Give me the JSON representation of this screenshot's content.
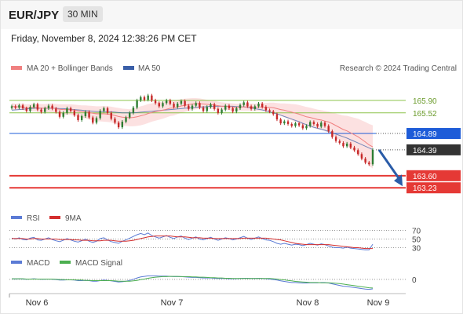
{
  "header": {
    "symbol": "EUR/JPY",
    "interval": "30 MIN",
    "timestamp": "Friday, November 8, 2024 12:38:26 PM CET",
    "attribution": "Research © 2024 Trading Central"
  },
  "colors": {
    "candle_up": "#2e7d32",
    "candle_down": "#c62828",
    "bollinger_fill": "#fbd7d7",
    "ma20": "#f08080",
    "ma50": "#3a5fa8",
    "resistance": "#8bc34a",
    "support": "#e53935",
    "current": "#333333",
    "pivot": "#1e5cd8",
    "rsi": "#5b7bd5",
    "rsi_ma": "#d32f2f",
    "macd": "#5b7bd5",
    "macd_signal": "#4caf50",
    "arrow": "#2a5ca8"
  },
  "chart_data": [
    {
      "type": "candlestick",
      "legend": [
        "MA 20 + Bollinger Bands",
        "MA 50"
      ],
      "legend_placement": "top-left",
      "x_ticks": [
        "Nov 6",
        "Nov 7",
        "Nov 8",
        "Nov 9"
      ],
      "ylim": [
        162.9,
        166.45
      ],
      "levels": [
        {
          "value": 165.9,
          "label": "165.90",
          "kind": "resistance"
        },
        {
          "value": 165.52,
          "label": "165.52",
          "kind": "resistance"
        },
        {
          "value": 164.89,
          "label": "164.89",
          "kind": "pivot"
        },
        {
          "value": 164.39,
          "label": "164.39",
          "kind": "current"
        },
        {
          "value": 163.6,
          "label": "163.60",
          "kind": "support"
        },
        {
          "value": 163.23,
          "label": "163.23",
          "kind": "support"
        }
      ],
      "close": [
        165.72,
        165.68,
        165.75,
        165.66,
        165.58,
        165.7,
        165.78,
        165.62,
        165.55,
        165.66,
        165.74,
        165.65,
        165.55,
        165.4,
        165.52,
        165.66,
        165.58,
        165.45,
        165.3,
        165.42,
        165.55,
        165.38,
        165.22,
        165.36,
        165.58,
        165.66,
        165.52,
        165.34,
        165.22,
        165.08,
        165.25,
        165.38,
        165.52,
        165.68,
        165.9,
        166.0,
        165.92,
        166.05,
        165.9,
        165.82,
        165.72,
        165.82,
        165.9,
        165.8,
        165.7,
        165.8,
        165.88,
        165.74,
        165.64,
        165.74,
        165.82,
        165.68,
        165.58,
        165.7,
        165.78,
        165.64,
        165.52,
        165.62,
        165.74,
        165.66,
        165.56,
        165.66,
        165.76,
        165.84,
        165.72,
        165.64,
        165.72,
        165.8,
        165.7,
        165.6,
        165.56,
        165.48,
        165.32,
        165.2,
        165.26,
        165.18,
        165.12,
        165.2,
        165.14,
        165.05,
        165.12,
        165.24,
        165.18,
        165.1,
        165.22,
        165.12,
        164.96,
        164.78,
        164.66,
        164.6,
        164.5,
        164.58,
        164.46,
        164.38,
        164.26,
        164.12,
        164.0,
        163.95,
        164.39
      ],
      "ma20": [
        165.72,
        165.7,
        165.71,
        165.7,
        165.67,
        165.68,
        165.69,
        165.68,
        165.66,
        165.66,
        165.67,
        165.67,
        165.65,
        165.63,
        165.62,
        165.62,
        165.62,
        165.6,
        165.58,
        165.56,
        165.55,
        165.53,
        165.51,
        165.49,
        165.49,
        165.49,
        165.48,
        165.47,
        165.44,
        165.41,
        165.39,
        165.38,
        165.37,
        165.38,
        165.4,
        165.43,
        165.46,
        165.5,
        165.53,
        165.56,
        165.58,
        165.6,
        165.63,
        165.66,
        165.67,
        165.7,
        165.73,
        165.75,
        165.77,
        165.79,
        165.8,
        165.8,
        165.79,
        165.78,
        165.77,
        165.76,
        165.74,
        165.72,
        165.72,
        165.71,
        165.7,
        165.69,
        165.7,
        165.7,
        165.7,
        165.7,
        165.69,
        165.7,
        165.7,
        165.69,
        165.69,
        165.68,
        165.65,
        165.62,
        165.6,
        165.57,
        165.54,
        165.51,
        165.48,
        165.44,
        165.4,
        165.38,
        165.35,
        165.32,
        165.3,
        165.27,
        165.24,
        165.19,
        165.13,
        165.07,
        165.01,
        164.97,
        164.91,
        164.85,
        164.79,
        164.71,
        164.63,
        164.54,
        164.48
      ],
      "bb_width": [
        0.1,
        0.1,
        0.1,
        0.1,
        0.11,
        0.11,
        0.12,
        0.12,
        0.13,
        0.13,
        0.13,
        0.14,
        0.14,
        0.15,
        0.16,
        0.16,
        0.16,
        0.17,
        0.18,
        0.19,
        0.2,
        0.21,
        0.22,
        0.23,
        0.23,
        0.24,
        0.24,
        0.24,
        0.25,
        0.26,
        0.26,
        0.26,
        0.26,
        0.27,
        0.28,
        0.29,
        0.29,
        0.29,
        0.28,
        0.28,
        0.27,
        0.26,
        0.25,
        0.24,
        0.23,
        0.22,
        0.21,
        0.2,
        0.19,
        0.18,
        0.17,
        0.16,
        0.15,
        0.14,
        0.13,
        0.13,
        0.12,
        0.12,
        0.11,
        0.11,
        0.11,
        0.11,
        0.11,
        0.11,
        0.11,
        0.11,
        0.11,
        0.12,
        0.12,
        0.13,
        0.14,
        0.15,
        0.17,
        0.19,
        0.21,
        0.23,
        0.25,
        0.27,
        0.28,
        0.29,
        0.3,
        0.3,
        0.3,
        0.3,
        0.3,
        0.31,
        0.32,
        0.34,
        0.37,
        0.4,
        0.43,
        0.46,
        0.49,
        0.52,
        0.55,
        0.58,
        0.61,
        0.64,
        0.66
      ],
      "ma50": [
        165.6,
        165.61,
        165.62,
        165.63,
        165.64,
        165.65,
        165.66,
        165.66,
        165.66,
        165.66,
        165.66,
        165.66,
        165.66,
        165.65,
        165.65,
        165.64,
        165.63,
        165.62,
        165.61,
        165.6,
        165.59,
        165.58,
        165.57,
        165.56,
        165.56,
        165.56,
        165.55,
        165.55,
        165.54,
        165.53,
        165.52,
        165.52,
        165.52,
        165.52,
        165.53,
        165.54,
        165.55,
        165.56,
        165.57,
        165.58,
        165.59,
        165.6,
        165.61,
        165.62,
        165.63,
        165.64,
        165.65,
        165.66,
        165.67,
        165.68,
        165.69,
        165.7,
        165.7,
        165.71,
        165.72,
        165.72,
        165.72,
        165.72,
        165.72,
        165.72,
        165.72,
        165.71,
        165.71,
        165.7,
        165.69,
        165.67,
        165.65,
        165.63,
        165.61,
        165.58,
        165.55,
        165.52,
        165.49,
        165.45,
        165.41,
        165.37,
        165.33,
        165.29,
        165.25,
        165.2,
        165.16,
        165.12,
        165.08,
        165.05,
        165.02,
        164.99,
        164.95,
        164.91,
        164.87,
        164.83,
        164.79,
        164.75,
        164.7,
        164.65,
        164.6,
        164.55,
        164.5,
        164.45,
        164.4
      ],
      "forecast_arrow": {
        "from": 164.39,
        "to": 163.23
      }
    },
    {
      "type": "line",
      "legend": [
        "RSI",
        "9MA"
      ],
      "legend_placement": "top-left",
      "ylim": [
        20,
        80
      ],
      "levels": [
        {
          "value": 70,
          "label": "70"
        },
        {
          "value": 50,
          "label": "50"
        },
        {
          "value": 30,
          "label": "30"
        }
      ],
      "series": [
        {
          "name": "RSI",
          "values": [
            52,
            50,
            53,
            49,
            48,
            52,
            54,
            48,
            47,
            50,
            53,
            49,
            46,
            44,
            47,
            51,
            48,
            45,
            43,
            46,
            50,
            45,
            42,
            45,
            51,
            53,
            48,
            44,
            42,
            40,
            45,
            48,
            52,
            56,
            60,
            63,
            60,
            64,
            58,
            55,
            52,
            55,
            58,
            54,
            51,
            55,
            57,
            52,
            49,
            52,
            55,
            50,
            48,
            51,
            54,
            50,
            47,
            50,
            53,
            51,
            48,
            50,
            53,
            56,
            52,
            49,
            52,
            55,
            51,
            48,
            47,
            44,
            40,
            38,
            40,
            38,
            36,
            38,
            37,
            35,
            37,
            40,
            38,
            36,
            39,
            37,
            34,
            31,
            30,
            30,
            29,
            31,
            29,
            28,
            27,
            26,
            25,
            25,
            38
          ]
        },
        {
          "name": "9MA",
          "values": [
            51,
            51,
            51,
            51,
            50,
            50,
            51,
            51,
            50,
            50,
            50,
            50,
            50,
            49,
            49,
            49,
            49,
            48,
            48,
            47,
            47,
            47,
            46,
            46,
            46,
            47,
            47,
            47,
            46,
            45,
            45,
            45,
            46,
            47,
            49,
            51,
            53,
            55,
            56,
            57,
            57,
            57,
            57,
            57,
            56,
            55,
            55,
            55,
            54,
            53,
            53,
            53,
            52,
            52,
            52,
            51,
            51,
            51,
            51,
            51,
            51,
            51,
            51,
            52,
            52,
            52,
            52,
            52,
            52,
            52,
            51,
            50,
            49,
            48,
            46,
            44,
            42,
            40,
            39,
            38,
            37,
            37,
            37,
            37,
            37,
            37,
            37,
            36,
            35,
            34,
            33,
            32,
            31,
            30,
            30,
            29,
            28,
            28,
            28
          ]
        }
      ]
    },
    {
      "type": "line",
      "legend": [
        "MACD",
        "MACD Signal"
      ],
      "legend_placement": "top-left",
      "ylim": [
        -0.45,
        0.35
      ],
      "levels": [
        {
          "value": 0,
          "label": "0"
        }
      ],
      "series": [
        {
          "name": "MACD",
          "values": [
            0.02,
            0.01,
            0.02,
            0.01,
            0.0,
            0.01,
            0.02,
            0.01,
            0.0,
            0.0,
            0.01,
            0.0,
            -0.01,
            -0.03,
            -0.03,
            -0.02,
            -0.02,
            -0.03,
            -0.05,
            -0.05,
            -0.04,
            -0.05,
            -0.07,
            -0.07,
            -0.05,
            -0.03,
            -0.04,
            -0.06,
            -0.08,
            -0.1,
            -0.09,
            -0.07,
            -0.04,
            0.0,
            0.05,
            0.09,
            0.11,
            0.13,
            0.13,
            0.13,
            0.12,
            0.12,
            0.12,
            0.11,
            0.1,
            0.1,
            0.1,
            0.09,
            0.08,
            0.07,
            0.07,
            0.06,
            0.05,
            0.05,
            0.05,
            0.04,
            0.03,
            0.03,
            0.03,
            0.02,
            0.02,
            0.02,
            0.03,
            0.04,
            0.04,
            0.03,
            0.03,
            0.04,
            0.03,
            0.02,
            0.01,
            -0.01,
            -0.03,
            -0.06,
            -0.08,
            -0.1,
            -0.12,
            -0.12,
            -0.13,
            -0.14,
            -0.14,
            -0.13,
            -0.13,
            -0.13,
            -0.12,
            -0.12,
            -0.14,
            -0.17,
            -0.2,
            -0.23,
            -0.26,
            -0.27,
            -0.29,
            -0.31,
            -0.33,
            -0.35,
            -0.37,
            -0.38,
            -0.36
          ]
        },
        {
          "name": "MACD Signal",
          "values": [
            0.02,
            0.02,
            0.02,
            0.02,
            0.01,
            0.01,
            0.01,
            0.01,
            0.01,
            0.01,
            0.01,
            0.01,
            0.0,
            -0.01,
            -0.01,
            -0.02,
            -0.02,
            -0.02,
            -0.03,
            -0.03,
            -0.04,
            -0.04,
            -0.05,
            -0.05,
            -0.05,
            -0.05,
            -0.05,
            -0.05,
            -0.06,
            -0.07,
            -0.07,
            -0.07,
            -0.07,
            -0.06,
            -0.04,
            -0.01,
            0.01,
            0.04,
            0.06,
            0.08,
            0.09,
            0.1,
            0.1,
            0.11,
            0.11,
            0.11,
            0.1,
            0.1,
            0.1,
            0.09,
            0.09,
            0.08,
            0.08,
            0.07,
            0.06,
            0.06,
            0.05,
            0.05,
            0.04,
            0.04,
            0.03,
            0.03,
            0.03,
            0.03,
            0.03,
            0.03,
            0.03,
            0.03,
            0.03,
            0.03,
            0.03,
            0.02,
            0.01,
            -0.01,
            -0.02,
            -0.04,
            -0.06,
            -0.08,
            -0.09,
            -0.1,
            -0.11,
            -0.12,
            -0.12,
            -0.12,
            -0.13,
            -0.13,
            -0.13,
            -0.14,
            -0.15,
            -0.16,
            -0.18,
            -0.2,
            -0.22,
            -0.24,
            -0.26,
            -0.28,
            -0.3,
            -0.32,
            -0.33
          ]
        }
      ]
    }
  ]
}
